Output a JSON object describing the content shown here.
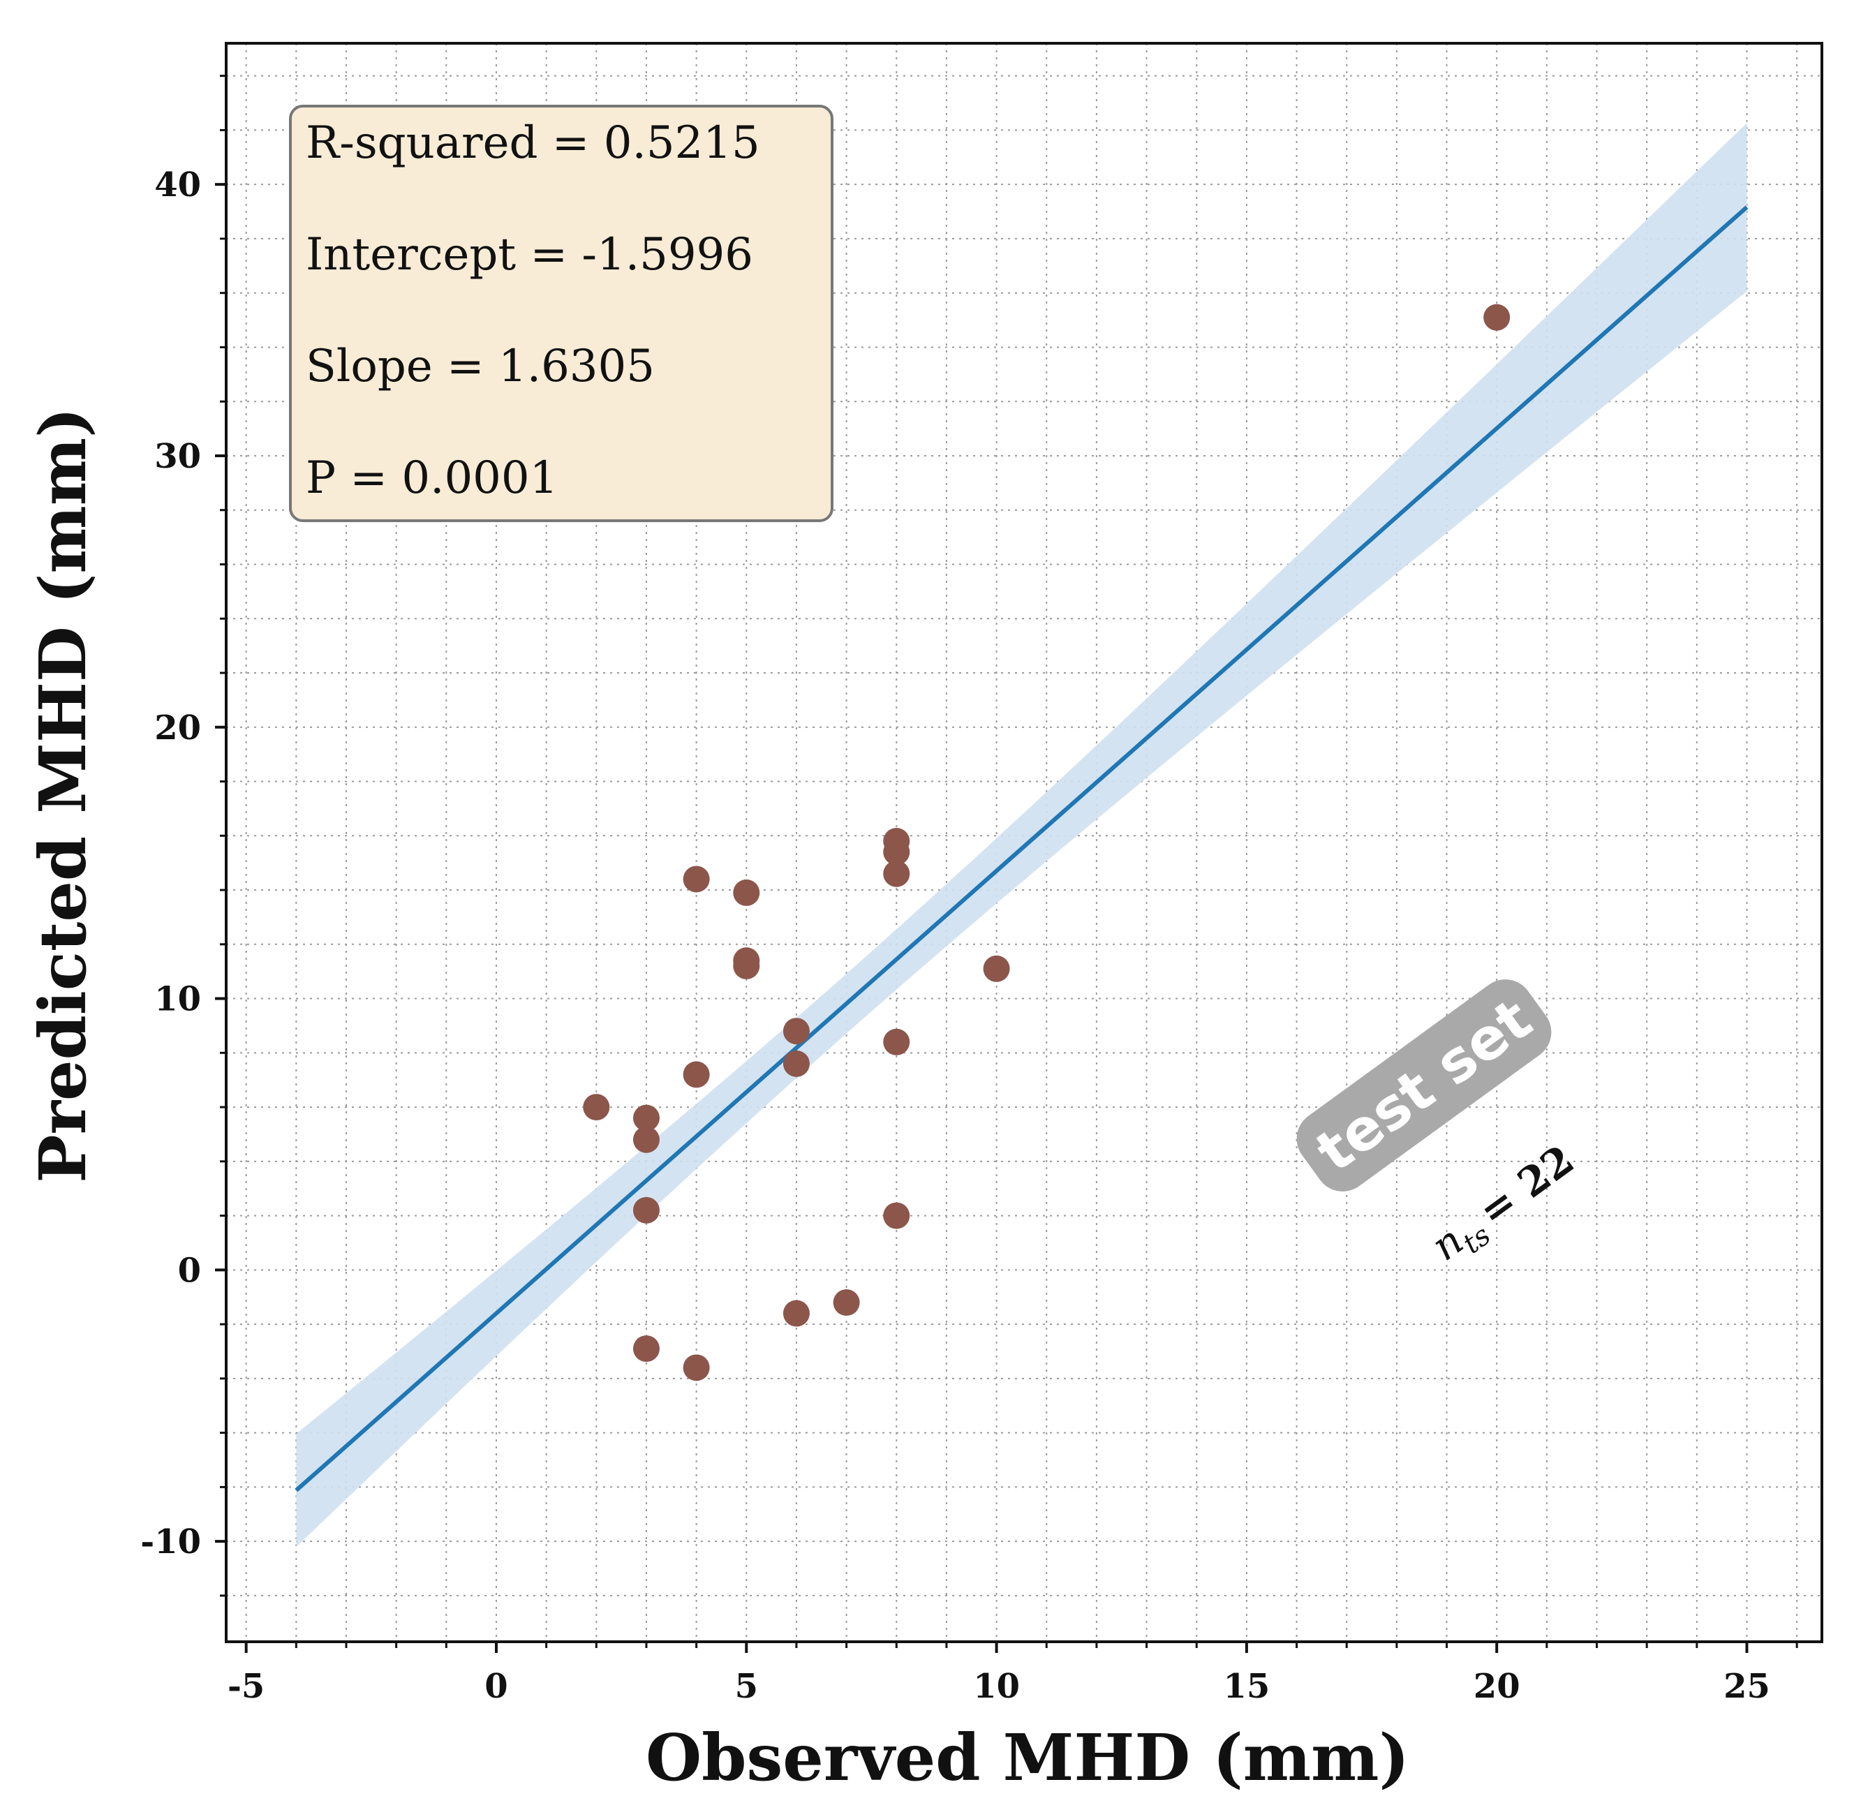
{
  "chart_data": {
    "type": "scatter",
    "title": "",
    "xlabel": "Observed MHD (mm)",
    "ylabel": "Predicted MHD (mm)",
    "xlim": [
      -5.4,
      26.5
    ],
    "ylim": [
      -13.7,
      45.2
    ],
    "xticks": [
      -5,
      0,
      5,
      10,
      15,
      20,
      25
    ],
    "yticks": [
      -10,
      0,
      10,
      20,
      30,
      40
    ],
    "xtick_labels": [
      "-5",
      "0",
      "5",
      "10",
      "15",
      "20",
      "25"
    ],
    "ytick_labels": [
      "-10",
      "0",
      "10",
      "20",
      "30",
      "40"
    ],
    "grid": true,
    "point_color": "#8c564b",
    "line_color": "#1f77b4",
    "band_color": "#cfe0f0",
    "points": [
      {
        "x": 2,
        "y": 6.0
      },
      {
        "x": 3,
        "y": 5.6
      },
      {
        "x": 3,
        "y": 4.8
      },
      {
        "x": 3,
        "y": 2.2
      },
      {
        "x": 3,
        "y": -2.9
      },
      {
        "x": 4,
        "y": 14.4
      },
      {
        "x": 4,
        "y": 7.2
      },
      {
        "x": 4,
        "y": -3.6
      },
      {
        "x": 5,
        "y": 13.9
      },
      {
        "x": 5,
        "y": 11.4
      },
      {
        "x": 5,
        "y": 11.2
      },
      {
        "x": 6,
        "y": 8.8
      },
      {
        "x": 6,
        "y": 7.6
      },
      {
        "x": 6,
        "y": -1.6
      },
      {
        "x": 7,
        "y": -1.2
      },
      {
        "x": 8,
        "y": 15.8
      },
      {
        "x": 8,
        "y": 15.4
      },
      {
        "x": 8,
        "y": 14.6
      },
      {
        "x": 8,
        "y": 8.4
      },
      {
        "x": 8,
        "y": 2.0
      },
      {
        "x": 10,
        "y": 11.1
      },
      {
        "x": 20,
        "y": 35.1
      }
    ],
    "regression": {
      "intercept": -1.5996,
      "slope": 1.6305,
      "x_range": [
        -4,
        25
      ],
      "band_halfwidth_at_ends": [
        3.1,
        3.0
      ],
      "band_halfwidth_at_center": 1.1,
      "band_center_x": 7
    },
    "stats_box": {
      "lines": [
        "R-squared = 0.5215",
        "Intercept = -1.5996",
        "Slope = 1.6305",
        "P = 0.0001"
      ],
      "position": "top-left",
      "fill": "#f8ecd6",
      "edge": "#777777"
    },
    "annotations": {
      "badge": "test set",
      "badge_color": "#a9a9a9",
      "n_label": "n",
      "n_subscript": "ts",
      "n_value": "= 22"
    }
  }
}
